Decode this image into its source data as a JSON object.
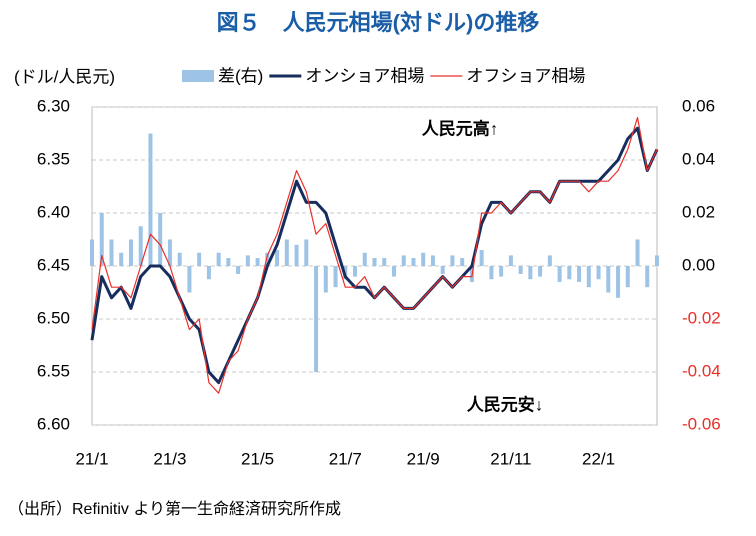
{
  "chart_data": {
    "type": "line",
    "title": "図５　人民元相場(対ドル)の推移",
    "y_axis_label": "(ドル/人民元)",
    "annotations": [
      "人民元高↑",
      "人民元安↓"
    ],
    "source": "（出所）Refinitiv より第一生命経済研究所作成",
    "categories": [
      "21/1",
      null,
      null,
      null,
      null,
      null,
      null,
      null,
      "21/3",
      null,
      null,
      null,
      null,
      null,
      null,
      null,
      null,
      "21/5",
      null,
      null,
      null,
      null,
      null,
      null,
      null,
      null,
      "21/7",
      null,
      null,
      null,
      null,
      null,
      null,
      null,
      "21/9",
      null,
      null,
      null,
      null,
      null,
      null,
      null,
      null,
      "21/11",
      null,
      null,
      null,
      null,
      null,
      null,
      null,
      null,
      "22/1",
      null,
      null,
      null,
      null,
      null,
      null
    ],
    "ylim": [
      6.3,
      6.6
    ],
    "y_inverted": true,
    "yticks": [
      {
        "value": 6.3,
        "label": "6.30"
      },
      {
        "value": 6.35,
        "label": "6.35"
      },
      {
        "value": 6.4,
        "label": "6.40"
      },
      {
        "value": 6.45,
        "label": "6.45"
      },
      {
        "value": 6.5,
        "label": "6.50"
      },
      {
        "value": 6.55,
        "label": "6.55"
      },
      {
        "value": 6.6,
        "label": "6.60"
      }
    ],
    "y2lim": [
      -0.06,
      0.06
    ],
    "y2ticks": [
      0.06,
      0.04,
      0.02,
      {
        "value": 0,
        "label": "0.00"
      },
      -0.02,
      -0.04,
      -0.06
    ],
    "y2_negative_color": "#e8302a",
    "grid": true,
    "series": [
      {
        "name": "差(右)",
        "type": "bar",
        "axis": "y2",
        "color": "#9dc3e6",
        "values": [
          0.01,
          0.02,
          0.01,
          0.005,
          0.01,
          0.015,
          0.05,
          0.02,
          0.01,
          0.005,
          -0.01,
          0.005,
          -0.005,
          0.005,
          0.003,
          -0.003,
          0.004,
          0.003,
          0.005,
          0.006,
          0.01,
          0.008,
          0.01,
          -0.04,
          -0.01,
          -0.008,
          -0.005,
          -0.004,
          0.005,
          0.003,
          0.003,
          -0.004,
          0.004,
          0.003,
          0.005,
          0.004,
          -0.003,
          0.004,
          0.003,
          -0.006,
          0.006,
          -0.005,
          -0.004,
          0.004,
          -0.003,
          -0.005,
          -0.004,
          0.004,
          -0.006,
          -0.005,
          -0.006,
          -0.008,
          -0.005,
          -0.01,
          -0.012,
          -0.008,
          0.01,
          -0.008,
          0.004
        ]
      },
      {
        "name": "オンショア相場",
        "type": "line",
        "color": "#162d5e",
        "values": [
          6.52,
          6.46,
          6.48,
          6.47,
          6.49,
          6.46,
          6.45,
          6.45,
          6.46,
          6.48,
          6.5,
          6.51,
          6.55,
          6.56,
          6.54,
          6.52,
          6.5,
          6.48,
          6.45,
          6.43,
          6.4,
          6.37,
          6.39,
          6.39,
          6.4,
          6.43,
          6.46,
          6.47,
          6.47,
          6.48,
          6.47,
          6.48,
          6.49,
          6.49,
          6.48,
          6.47,
          6.46,
          6.47,
          6.46,
          6.45,
          6.41,
          6.39,
          6.39,
          6.4,
          6.39,
          6.38,
          6.38,
          6.39,
          6.37,
          6.37,
          6.37,
          6.37,
          6.37,
          6.36,
          6.35,
          6.33,
          6.32,
          6.36,
          6.34
        ]
      },
      {
        "name": "オフショア相場",
        "type": "line",
        "color": "#e8302a",
        "values": [
          6.51,
          6.44,
          6.47,
          6.47,
          6.48,
          6.45,
          6.42,
          6.43,
          6.45,
          6.48,
          6.51,
          6.5,
          6.56,
          6.57,
          6.54,
          6.53,
          6.5,
          6.48,
          6.44,
          6.42,
          6.39,
          6.36,
          6.38,
          6.42,
          6.41,
          6.44,
          6.47,
          6.47,
          6.46,
          6.48,
          6.47,
          6.48,
          6.49,
          6.49,
          6.48,
          6.47,
          6.46,
          6.47,
          6.46,
          6.46,
          6.4,
          6.4,
          6.39,
          6.4,
          6.39,
          6.38,
          6.38,
          6.39,
          6.37,
          6.37,
          6.37,
          6.38,
          6.37,
          6.37,
          6.36,
          6.34,
          6.31,
          6.36,
          6.34
        ]
      }
    ]
  }
}
